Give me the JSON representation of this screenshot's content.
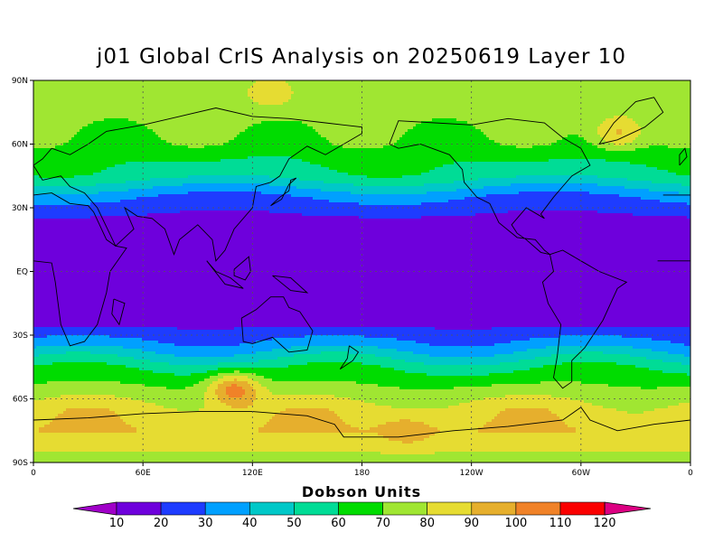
{
  "title": "j01 Global CrIS Analysis on 20250619 Layer 10",
  "colorbar": {
    "title": "Dobson Units",
    "labels": [
      "10",
      "20",
      "30",
      "40",
      "50",
      "60",
      "70",
      "80",
      "90",
      "100",
      "110",
      "120"
    ],
    "colors": [
      "#a000c8",
      "#6e00dc",
      "#1e3cff",
      "#00a0ff",
      "#00c8c8",
      "#00dc96",
      "#00dc00",
      "#a0e632",
      "#e6dc32",
      "#e6af2d",
      "#f08228",
      "#fa0000",
      "#dc0082"
    ]
  },
  "axes": {
    "lon_ticks": [
      "0",
      "60E",
      "120E",
      "180",
      "120W",
      "60W",
      "0"
    ],
    "lat_ticks": [
      "90N",
      "60N",
      "30N",
      "EQ",
      "30S",
      "60S",
      "90S"
    ]
  },
  "chart_data": {
    "type": "heatmap",
    "title": "j01 Global CrIS Analysis on 20250619 Layer 10",
    "units": "Dobson Units",
    "x": "longitude 0 to 360",
    "y": "latitude -90 to 90",
    "contour_levels": [
      10,
      20,
      30,
      40,
      50,
      60,
      70,
      80,
      90,
      100,
      110,
      120
    ],
    "zonal_profile": [
      {
        "lat": 90,
        "value": 72
      },
      {
        "lat": 75,
        "value": 75
      },
      {
        "lat": 60,
        "value": 68
      },
      {
        "lat": 45,
        "value": 55
      },
      {
        "lat": 35,
        "value": 30
      },
      {
        "lat": 25,
        "value": 18
      },
      {
        "lat": 0,
        "value": 15
      },
      {
        "lat": -25,
        "value": 18
      },
      {
        "lat": -35,
        "value": 35
      },
      {
        "lat": -45,
        "value": 58
      },
      {
        "lat": -55,
        "value": 72
      },
      {
        "lat": -65,
        "value": 85
      },
      {
        "lat": -75,
        "value": 90
      },
      {
        "lat": -90,
        "value": 75
      }
    ],
    "features": [
      {
        "lon": 110,
        "lat": -55,
        "value": 105
      },
      {
        "lon": 205,
        "lat": -75,
        "value": 100
      },
      {
        "lon": 320,
        "lat": 65,
        "value": 95
      },
      {
        "lon": 130,
        "lat": 85,
        "value": 88
      }
    ]
  }
}
